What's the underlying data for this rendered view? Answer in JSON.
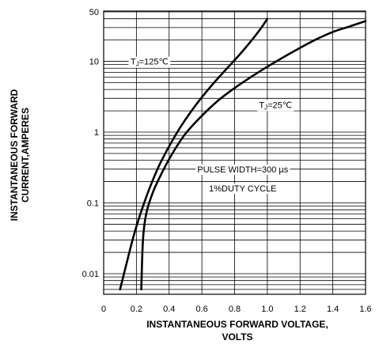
{
  "chart_data": {
    "type": "line",
    "title": "",
    "xlabel": "INSTANTANEOUS FORWARD VOLTAGE, VOLTS",
    "xlabel_lines": [
      "INSTANTANEOUS FORWARD VOLTAGE,",
      "VOLTS"
    ],
    "ylabel": "INSTANTANEOUS FORWARD CURRENT,AMPERES",
    "ylabel_lines": [
      "INSTANTANEOUS FORWARD",
      "CURRENT,AMPERES"
    ],
    "x_scale": "linear",
    "y_scale": "log",
    "xlim": [
      0,
      1.6
    ],
    "ylim": [
      0.006,
      50
    ],
    "grid": true,
    "x_ticks": [
      0,
      0.2,
      0.4,
      0.6,
      0.8,
      1.0,
      1.2,
      1.4,
      1.6
    ],
    "x_tick_labels": [
      "0",
      "0.2",
      "0.4",
      "0.6",
      "0.8",
      "1.0",
      "1.2",
      "1.4",
      "1.6"
    ],
    "y_ticks": [
      0.01,
      0.1,
      1,
      10,
      50
    ],
    "y_tick_labels": [
      "0.01",
      "0.1",
      "1",
      "10",
      "50"
    ],
    "series": [
      {
        "name": "TJ=125℃",
        "x": [
          0.1,
          0.14,
          0.18,
          0.22,
          0.28,
          0.35,
          0.45,
          0.55,
          0.65,
          0.75,
          0.85,
          0.95,
          1.0
        ],
        "y": [
          0.006,
          0.014,
          0.032,
          0.065,
          0.16,
          0.38,
          1.0,
          2.2,
          4.3,
          7.8,
          14,
          27,
          40
        ]
      },
      {
        "name": "TJ=25℃",
        "x": [
          0.23,
          0.24,
          0.26,
          0.3,
          0.35,
          0.42,
          0.5,
          0.6,
          0.7,
          0.8,
          0.9,
          1.0,
          1.1,
          1.2,
          1.3,
          1.4,
          1.5,
          1.6
        ],
        "y": [
          0.006,
          0.03,
          0.07,
          0.14,
          0.25,
          0.5,
          0.95,
          1.7,
          2.8,
          4.2,
          6.0,
          8.4,
          11.5,
          15.5,
          20.5,
          26,
          31,
          37
        ]
      }
    ],
    "annotations": [
      {
        "series_label": "TJ=125℃",
        "prefix": "T",
        "sub": "J",
        "suffix": "=125℃",
        "x": 0.28,
        "y": 9.0
      },
      {
        "series_label": "TJ=25℃",
        "prefix": "T",
        "sub": "J",
        "suffix": "=25℃",
        "x": 1.05,
        "y": 2.2
      },
      {
        "text_lines": [
          "PULSE WIDTH=300 µs",
          "1%DUTY CYCLE"
        ],
        "x": 0.85,
        "y": [
          0.27,
          0.145
        ]
      }
    ]
  }
}
